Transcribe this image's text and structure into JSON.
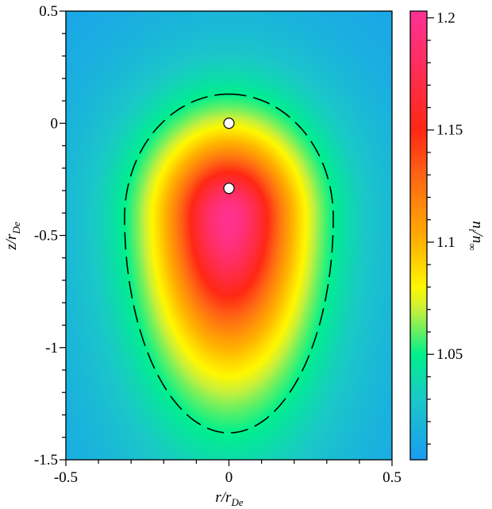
{
  "chart_data": {
    "type": "heatmap",
    "title": "",
    "xlabel": "r/r",
    "xlabel_sub": "De",
    "ylabel": "z/r",
    "ylabel_sub": "De",
    "colorbar_label": "n",
    "colorbar_label_sub1": "i",
    "colorbar_label_mid": "/n",
    "colorbar_label_sub2": "∞",
    "xlim": [
      -0.5,
      0.5
    ],
    "ylim": [
      -1.5,
      0.5
    ],
    "xticks": [
      "-0.5",
      "0",
      "0.5"
    ],
    "xtick_values": [
      -0.5,
      0,
      0.5
    ],
    "yticks": [
      "0.5",
      "0",
      "-0.5",
      "-1",
      "-1.5"
    ],
    "ytick_values": [
      0.5,
      0,
      -0.5,
      -1,
      -1.5
    ],
    "colorbar_range": [
      1.003,
      1.203
    ],
    "colorbar_ticks": [
      "1.2",
      "1.15",
      "1.1",
      "1.05"
    ],
    "colorbar_tick_values": [
      1.2,
      1.15,
      1.1,
      1.05
    ],
    "peak": {
      "r": 0,
      "z": -0.42,
      "value": 1.2
    },
    "contour": {
      "level": 1.05,
      "style": "dashed",
      "z_top": 0.13,
      "z_bottom": -1.38,
      "r_half_width": 0.32
    },
    "markers": [
      {
        "r": 0,
        "z": 0
      },
      {
        "r": 0,
        "z": -0.29
      }
    ],
    "colormap": [
      [
        1.003,
        "#1a9cf2"
      ],
      [
        1.03,
        "#1ac8c8"
      ],
      [
        1.05,
        "#00f08c"
      ],
      [
        1.07,
        "#c8f03c"
      ],
      [
        1.08,
        "#fff800"
      ],
      [
        1.1,
        "#ffb400"
      ],
      [
        1.13,
        "#ff6414"
      ],
      [
        1.15,
        "#ff2814"
      ],
      [
        1.203,
        "#ff3296"
      ]
    ]
  }
}
